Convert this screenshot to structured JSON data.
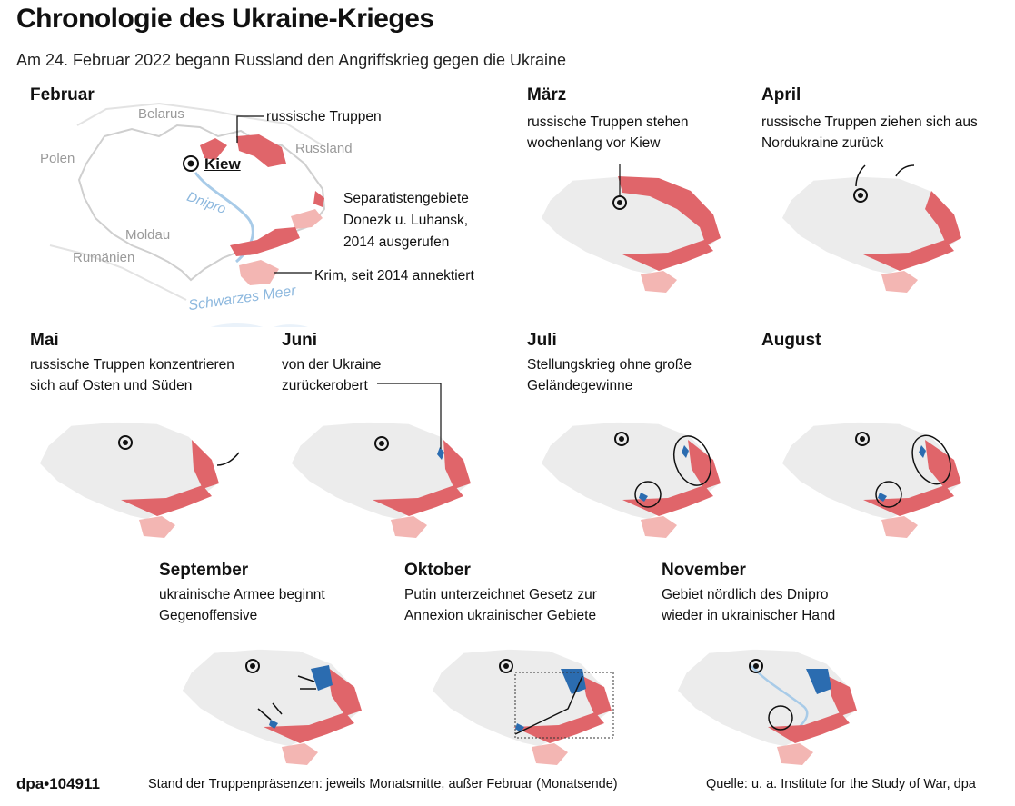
{
  "title": "Chronologie des Ukraine-Krieges",
  "subtitle": "Am 24. Februar 2022 begann Russland den Angriffskrieg gegen die Ukraine",
  "colors": {
    "ukraine": "#ececec",
    "occupied": "#e0656a",
    "annexed_2014": "#f3b6b3",
    "recaptured": "#2b6cb0",
    "water": "#a8cbe8"
  },
  "february": {
    "month": "Februar",
    "labels": {
      "belarus": "Belarus",
      "polen": "Polen",
      "russland": "Russland",
      "moldau": "Moldau",
      "rumaenien": "Rumänien",
      "kiew": "Kiew",
      "dnipro": "Dnipro",
      "schwarzes_meer": "Schwarzes Meer",
      "russische_truppen": "russische Truppen",
      "separatisten_1": "Separatistengebiete",
      "separatisten_2": "Donezk u. Luhansk,",
      "separatisten_3": "2014 ausgerufen",
      "krim": "Krim, seit 2014 annektiert"
    }
  },
  "panels": [
    {
      "month": "März",
      "cap1": "russische Truppen stehen",
      "cap2": "wochenlang vor Kiew"
    },
    {
      "month": "April",
      "cap1": "russische Truppen ziehen sich aus",
      "cap2": "Nordukraine zurück"
    },
    {
      "month": "Mai",
      "cap1": "russische Truppen konzentrieren",
      "cap2": "sich auf Osten und Süden"
    },
    {
      "month": "Juni",
      "cap1": "von der Ukraine",
      "cap2": "zurückerobert"
    },
    {
      "month": "Juli",
      "cap1": "Stellungskrieg ohne große",
      "cap2": "Geländegewinne"
    },
    {
      "month": "August",
      "cap1": "",
      "cap2": ""
    },
    {
      "month": "September",
      "cap1": "ukrainische Armee beginnt",
      "cap2": "Gegenoffensive"
    },
    {
      "month": "Oktober",
      "cap1": "Putin unterzeichnet Gesetz zur",
      "cap2": "Annexion ukrainischer Gebiete"
    },
    {
      "month": "November",
      "cap1": "Gebiet nördlich des Dnipro",
      "cap2": "wieder in ukrainischer Hand"
    }
  ],
  "footer": {
    "id": "dpa•104911",
    "note": "Stand der Truppenpräsenzen: jeweils Monatsmitte, außer Februar (Monatsende)",
    "source": "Quelle: u. a. Institute for the Study of War, dpa"
  }
}
